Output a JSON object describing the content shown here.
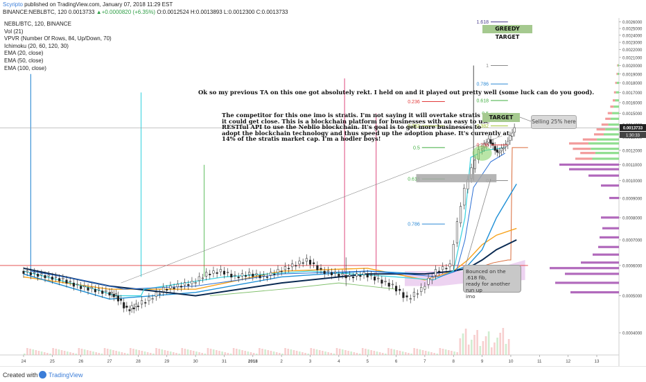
{
  "header": {
    "author": "Scyripto",
    "published": "published on TradingView.com, January 07, 2018 11:29 EST",
    "symbol": "BINANCE:NEBLBTC, 120",
    "last": "0.0013733",
    "change": "+0.0000820 (+6.35%)",
    "o_label": "O:",
    "o": "0.0012524",
    "h_label": "H:",
    "h": "0.0013893",
    "l_label": "L:",
    "l": "0.0012300",
    "c_label": "C:",
    "c": "0.0013733"
  },
  "indicators": [
    "NEBL/BTC, 120, BINANCE",
    "Vol (21)",
    "VPVR (Number Of Rows, 84, Up/Down, 70)",
    "Ichimoku (20, 60, 120, 30)",
    "EMA (20, close)",
    "EMA (50, close)",
    "EMA (100, close)"
  ],
  "annotations": {
    "headline": "Ok so my previous TA on this one got absolutely rekt. I held on and it played out pretty well (some luck can do you good).",
    "body": [
      "The competitor for this one imo is stratis. I'm not saying it will overtake stratis BUT",
      "it could get close. This is a blockchain platform for businesses with an easy to use",
      "RESTful API to use the Neblio blockchain. It's goal is  to get more businesses to",
      "adopt the blockchain technology and thus speed up the adoption phase. It's currently at",
      "14% of the stratis market cap. I'm a hodler boys!"
    ],
    "greedy_target": "GREEDY TARGET",
    "target": "TARGET",
    "selling": "Selling 25% here",
    "bounced": [
      "Bounced on the .618 fib,",
      "ready for another run up",
      "imo"
    ]
  },
  "price_tag": {
    "price": "0.0013733",
    "time": "1:30:33"
  },
  "footer": {
    "created": "Created with",
    "brand": "TradingView"
  },
  "colors": {
    "up_candle": "#2a2a2a",
    "ema20": "#f7a21b",
    "ema50": "#1e8fd6",
    "ema100": "#0a2a52",
    "conversion": "#40d4e0",
    "cloud": "#e8c8ee",
    "target_box": "#a5c98f",
    "vpvr_up": "#7bd87b",
    "vpvr_down": "#f08a8a",
    "vpvr_volume": "#a34fb0",
    "resistance": "#e23b3b"
  },
  "chart_data": {
    "type": "line",
    "title": "NEBL/BTC, 120, BINANCE",
    "x_ticks": [
      "24",
      "25",
      "26",
      "27",
      "28",
      "29",
      "30",
      "31",
      "2018",
      "2",
      "3",
      "4",
      "5",
      "6",
      "7",
      "8",
      "9",
      "10",
      "11",
      "12",
      "13"
    ],
    "y_ticks": [
      "0.0004000",
      "0.0005000",
      "0.0006000",
      "0.0007000",
      "0.0008000",
      "0.0009000",
      "0.0010000",
      "0.0011000",
      "0.0012000",
      "0.0013000",
      "0.0014000",
      "0.0015000",
      "0.0016000",
      "0.0017000",
      "0.0018000",
      "0.0019000",
      "0.0020000",
      "0.0021000",
      "0.0022000",
      "0.0023000",
      "0.0024000",
      "0.0025000",
      "0.0026000"
    ],
    "ylim": [
      0.00035,
      0.00264
    ],
    "grid": false,
    "series": [
      {
        "name": "NEBL/BTC",
        "x": [
          0,
          0.5,
          1,
          1.5,
          2,
          2.5,
          3,
          3.3,
          3.7,
          4,
          4.5,
          5,
          5.5,
          6,
          6.5,
          7,
          7.5,
          8,
          8.5,
          9,
          9.5,
          10,
          10.5,
          11,
          11.5,
          12,
          12.5,
          13,
          13.5,
          14,
          14.5,
          15,
          15.5,
          16,
          16.3,
          16.6,
          16.9,
          17.2
        ],
        "values": [
          0.00058,
          0.00057,
          0.00056,
          0.00055,
          0.00053,
          0.00052,
          0.00051,
          0.0005,
          0.00046,
          0.00047,
          0.00049,
          0.00052,
          0.00053,
          0.00054,
          0.00057,
          0.00058,
          0.00056,
          0.00057,
          0.00056,
          0.00058,
          0.0006,
          0.00062,
          0.00058,
          0.00057,
          0.00056,
          0.00057,
          0.00055,
          0.00053,
          0.00049,
          0.00052,
          0.00058,
          0.0006,
          0.00095,
          0.0012,
          0.00128,
          0.00118,
          0.00124,
          0.00137
        ]
      },
      {
        "name": "EMA (20, close)",
        "x": [
          0,
          3,
          6,
          9,
          12,
          14,
          15,
          15.5,
          16,
          16.5,
          17.2
        ],
        "values": [
          0.00056,
          0.00052,
          0.00052,
          0.00058,
          0.00059,
          0.00055,
          0.00058,
          0.00062,
          0.00068,
          0.00072,
          0.00075
        ]
      },
      {
        "name": "EMA (50, close)",
        "x": [
          0,
          3,
          6,
          9,
          12,
          14,
          15,
          15.5,
          16,
          16.5,
          17.2
        ],
        "values": [
          0.00057,
          0.00049,
          0.00051,
          0.00056,
          0.00058,
          0.00057,
          0.00058,
          0.0006,
          0.00066,
          0.0008,
          0.00098
        ]
      },
      {
        "name": "EMA (100, close)",
        "x": [
          0,
          3,
          6,
          9,
          12,
          14,
          15,
          15.5,
          16,
          16.5,
          17.2
        ],
        "values": [
          0.00059,
          0.00053,
          0.0005,
          0.00054,
          0.00057,
          0.00057,
          0.00058,
          0.00059,
          0.00062,
          0.00066,
          0.0007
        ]
      }
    ],
    "fib_levels": [
      {
        "label": "1.618",
        "value": 0.0026
      },
      {
        "label": "1",
        "value": 0.002
      },
      {
        "label": "0.786",
        "value": 0.00179
      },
      {
        "label": "0.618",
        "value": 0.00162
      },
      {
        "label": "0.5",
        "value": 0.0015
      },
      {
        "label": "0.382",
        "value": 0.00139
      },
      {
        "label": "0.236",
        "value": 0.00124
      },
      {
        "label": "0",
        "value": 0.001
      }
    ],
    "fib_retracement": [
      {
        "label": "0.236",
        "value": 0.00161
      },
      {
        "label": "0.382",
        "value": 0.00139
      },
      {
        "label": "0.5",
        "value": 0.00122
      },
      {
        "label": "0.618",
        "value": 0.00101
      },
      {
        "label": "0.786",
        "value": 0.00077
      }
    ]
  }
}
